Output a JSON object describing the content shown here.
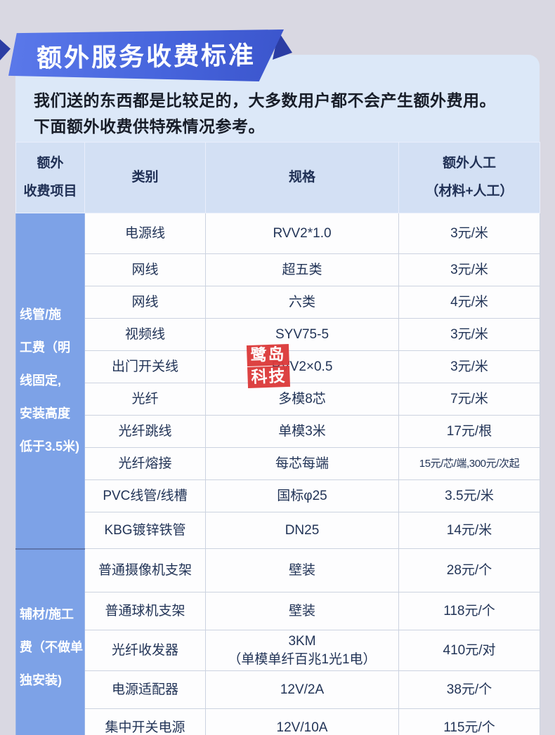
{
  "banner": {
    "title": "额外服务收费标准"
  },
  "intro": {
    "text": "我们送的东西都是比较足的，大多数用户都不会产生额外费用。\n下面额外收费供特殊情况参考。"
  },
  "watermark": {
    "line1": "鹭岛",
    "line2": "科技"
  },
  "table": {
    "headers": [
      "额外\n收费项目",
      "类别",
      "规格",
      "额外人工\n（材料+人工）"
    ],
    "groups": [
      {
        "label": "线管/施\n工费（明\n线固定,\n安装高度\n低于3.5米)",
        "rows": [
          [
            "电源线",
            "RVV2*1.0",
            "3元/米"
          ],
          [
            "网线",
            "超五类",
            "3元/米"
          ],
          [
            "网线",
            "六类",
            "4元/米"
          ],
          [
            "视频线",
            "SYV75-5",
            "3元/米"
          ],
          [
            "出门开关线",
            "RVV2×0.5",
            "3元/米"
          ],
          [
            "光纤",
            "多模8芯",
            "7元/米"
          ],
          [
            "光纤跳线",
            "单模3米",
            "17元/根"
          ],
          [
            "光纤熔接",
            "每芯每端",
            "15元/芯/端,300元/次起"
          ],
          [
            "PVC线管/线槽",
            "国标φ25",
            "3.5元/米"
          ],
          [
            "KBG镀锌铁管",
            "DN25",
            "14元/米"
          ]
        ]
      },
      {
        "label": "辅材/施工\n费（不做单\n独安装)",
        "rows": [
          [
            "普通摄像机支架",
            "壁装",
            "28元/个"
          ],
          [
            "普通球机支架",
            "壁装",
            "118元/个"
          ],
          [
            "光纤收发器",
            "3KM\n（单模单纤百兆1光1电）",
            "410元/对"
          ],
          [
            "电源适配器",
            "12V/2A",
            "38元/个"
          ],
          [
            "集中开关电源",
            "12V/10A",
            "115元/个"
          ]
        ]
      }
    ]
  },
  "colors": {
    "page_bg": "#d9d8e2",
    "banner_blue": "#4b68de",
    "fold_blue": "#2b3da4",
    "intro_bg": "#dce8f8",
    "header_bg": "#d3e0f4",
    "group_cell_blue": "#7da2e7",
    "watermark_red": "#dc3b3b",
    "cell_text": "#223457"
  }
}
